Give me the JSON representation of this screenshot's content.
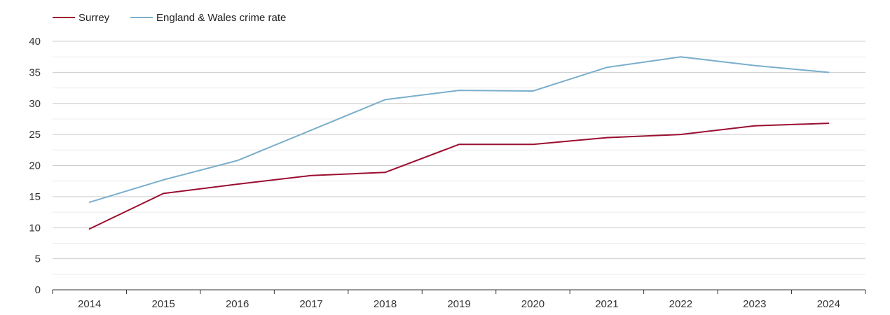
{
  "chart_data": {
    "type": "line",
    "title": "",
    "xlabel": "",
    "ylabel": "",
    "ylim": [
      0,
      40
    ],
    "yticks": [
      "0",
      "5",
      "10",
      "15",
      "20",
      "25",
      "30",
      "35",
      "40"
    ],
    "categories": [
      "2014",
      "2015",
      "2016",
      "2017",
      "2018",
      "2019",
      "2020",
      "2021",
      "2022",
      "2023",
      "2024"
    ],
    "grid": true,
    "legend_position": "top-left",
    "series": [
      {
        "name": "Surrey",
        "color": "#9b0e30",
        "values": [
          9.8,
          15.5,
          17.0,
          18.4,
          18.9,
          23.4,
          23.4,
          24.5,
          25.0,
          26.4,
          26.8
        ]
      },
      {
        "name": "England & Wales crime rate",
        "color": "#7aaecb",
        "values": [
          14.1,
          17.7,
          20.8,
          25.7,
          30.6,
          32.1,
          32.0,
          35.8,
          37.5,
          36.1,
          35.0
        ]
      }
    ]
  }
}
